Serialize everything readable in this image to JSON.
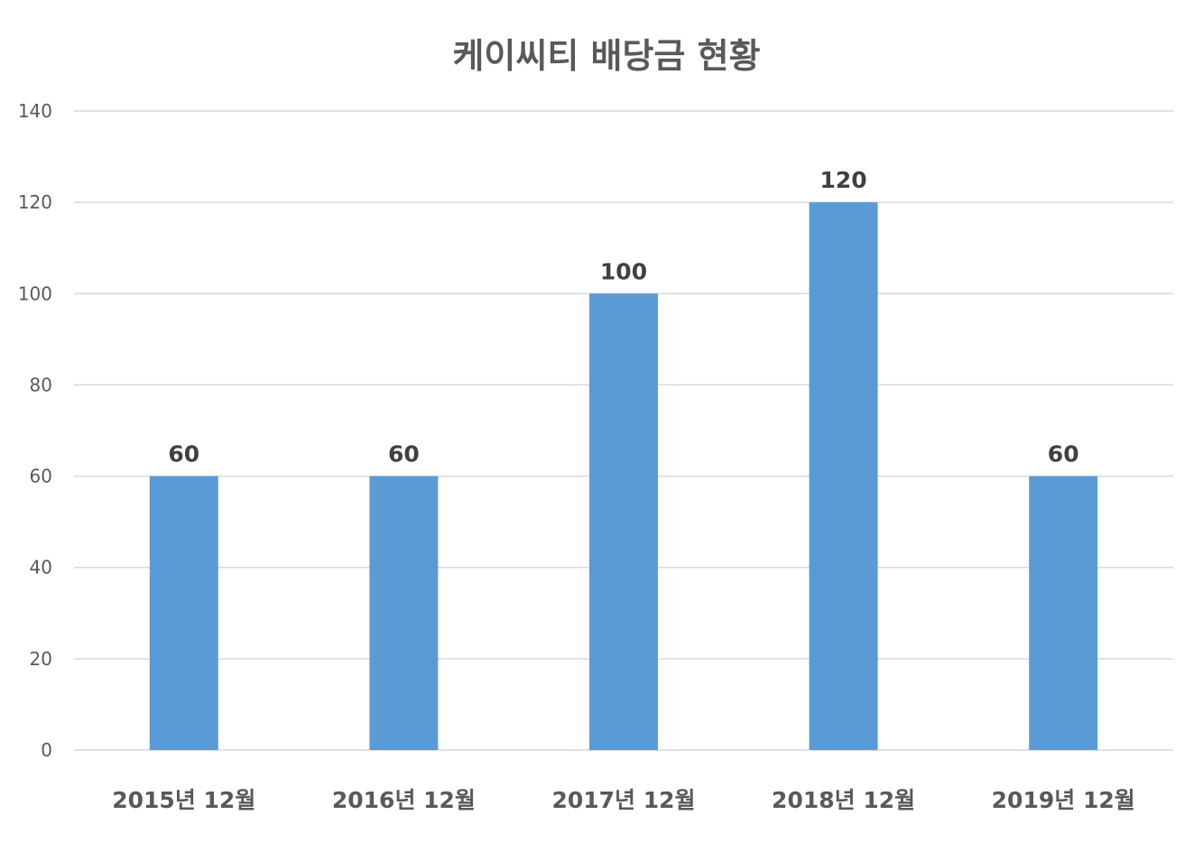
{
  "chart_data": {
    "type": "bar",
    "title": "케이씨티 배당금 현황",
    "categories": [
      "2015년 12월",
      "2016년 12월",
      "2017년 12월",
      "2018년 12월",
      "2019년 12월"
    ],
    "values": [
      60,
      60,
      100,
      120,
      60
    ],
    "data_labels": [
      "60",
      "60",
      "100",
      "120",
      "60"
    ],
    "ylim": [
      0,
      140
    ],
    "yticks": [
      0,
      20,
      40,
      60,
      80,
      100,
      120,
      140
    ],
    "xlabel": "",
    "ylabel": "",
    "grid": true,
    "legend": "none",
    "bar_color": "#5b9bd5"
  }
}
